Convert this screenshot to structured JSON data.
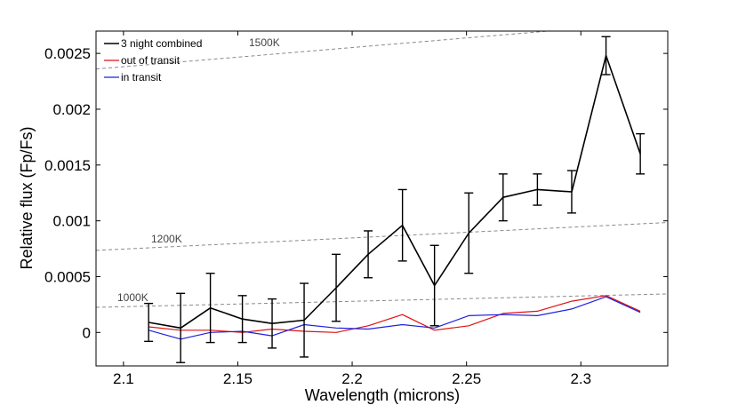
{
  "chart_data": {
    "type": "line",
    "title": "",
    "xlabel": "Wavelength (microns)",
    "ylabel": "Relative flux (Fp/Fs)",
    "xlim": [
      2.088,
      2.338
    ],
    "ylim": [
      -0.0003,
      0.0027
    ],
    "xticks": [
      {
        "value": 2.1,
        "label": "2.1"
      },
      {
        "value": 2.15,
        "label": "2.15"
      },
      {
        "value": 2.2,
        "label": "2.2"
      },
      {
        "value": 2.25,
        "label": "2.25"
      },
      {
        "value": 2.3,
        "label": "2.3"
      }
    ],
    "yticks": [
      {
        "value": 0,
        "label": "0"
      },
      {
        "value": 0.0005,
        "label": "0.0005"
      },
      {
        "value": 0.001,
        "label": "0.001"
      },
      {
        "value": 0.0015,
        "label": "0.0015"
      },
      {
        "value": 0.002,
        "label": "0.002"
      },
      {
        "value": 0.0025,
        "label": "0.0025"
      }
    ],
    "legend_position": "top-left",
    "series": [
      {
        "name": "3 night combined",
        "color": "#000000",
        "x": [
          2.111,
          2.125,
          2.138,
          2.152,
          2.165,
          2.179,
          2.193,
          2.207,
          2.222,
          2.236,
          2.251,
          2.266,
          2.281,
          2.296,
          2.311,
          2.326
        ],
        "y": [
          9e-05,
          4e-05,
          0.00022,
          0.00012,
          8e-05,
          0.00011,
          0.0004,
          0.0007,
          0.00096,
          0.00042,
          0.00089,
          0.00121,
          0.00128,
          0.00126,
          0.00248,
          0.0016
        ],
        "err": [
          0.00017,
          0.00031,
          0.00031,
          0.00021,
          0.00022,
          0.00033,
          0.0003,
          0.00021,
          0.00032,
          0.00036,
          0.00036,
          0.00021,
          0.00014,
          0.00019,
          0.00017,
          0.00018
        ]
      },
      {
        "name": "out of transit",
        "color": "#e01010",
        "x": [
          2.111,
          2.125,
          2.138,
          2.152,
          2.165,
          2.179,
          2.193,
          2.207,
          2.222,
          2.236,
          2.251,
          2.266,
          2.281,
          2.296,
          2.311,
          2.326
        ],
        "y": [
          5e-05,
          2e-05,
          2e-05,
          0.0,
          3e-05,
          1e-05,
          0.0,
          6e-05,
          0.00016,
          2e-05,
          6e-05,
          0.00017,
          0.00019,
          0.00028,
          0.00033,
          0.00019
        ]
      },
      {
        "name": "in transit",
        "color": "#2020e0",
        "x": [
          2.111,
          2.125,
          2.138,
          2.152,
          2.165,
          2.179,
          2.193,
          2.207,
          2.222,
          2.236,
          2.251,
          2.266,
          2.281,
          2.296,
          2.311,
          2.326
        ],
        "y": [
          2e-05,
          -6e-05,
          0.0,
          1e-05,
          -3e-05,
          7e-05,
          4e-05,
          3e-05,
          7e-05,
          4e-05,
          0.00015,
          0.00016,
          0.00015,
          0.00021,
          0.00032,
          0.00018
        ]
      }
    ],
    "reference_lines": [
      {
        "label": "1500K",
        "x": [
          2.088,
          2.338
        ],
        "y": [
          0.00236,
          0.00279
        ]
      },
      {
        "label": "1200K",
        "x": [
          2.088,
          2.338
        ],
        "y": [
          0.000735,
          0.000985
        ]
      },
      {
        "label": "1000K",
        "x": [
          2.088,
          2.338
        ],
        "y": [
          0.000225,
          0.000345
        ]
      }
    ]
  }
}
